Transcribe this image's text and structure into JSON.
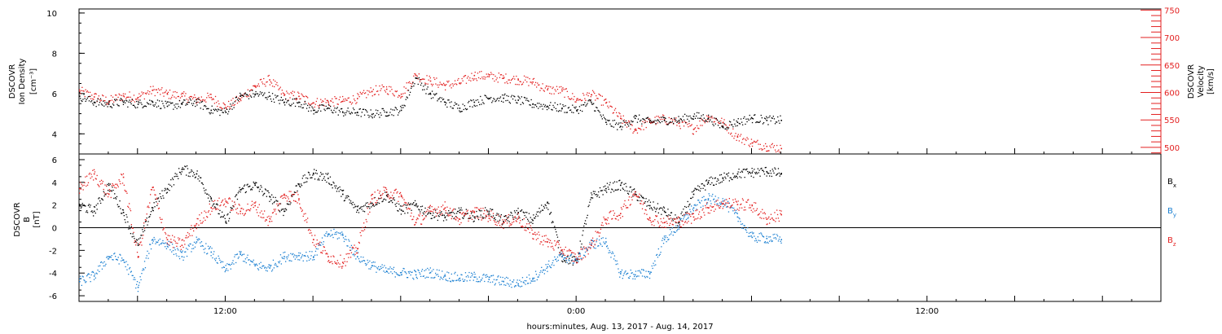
{
  "chart_data": [
    {
      "type": "scatter",
      "panel": "top",
      "title": "",
      "xlabel": "hours:minutes, Aug. 13, 2017 - Aug. 14, 2017",
      "x_tick_labels": [
        "12:00",
        "0:00",
        "12:00"
      ],
      "x_tick_hours": [
        12,
        24,
        36
      ],
      "xlim_hours": [
        7,
        44
      ],
      "grid": false,
      "y_left": {
        "label_lines": [
          "DSCOVR",
          "Ion Density"
        ],
        "unit": "[cm⁻³]",
        "ylim": [
          3,
          10.2
        ],
        "ticks": [
          4,
          6,
          8,
          10
        ],
        "color": "#000000"
      },
      "y_right": {
        "label_lines": [
          "DSCOVR",
          "Velocity"
        ],
        "unit": "[km/s]",
        "ylim": [
          488,
          752
        ],
        "ticks": [
          500,
          550,
          600,
          650,
          700,
          750
        ],
        "color": "#e32020"
      },
      "series": [
        {
          "axis": "left",
          "color": "#000000",
          "x": [
            7.0,
            7.5,
            8.0,
            8.5,
            9.0,
            9.5,
            10.0,
            10.5,
            11.0,
            11.5,
            12.0,
            12.5,
            13.0,
            13.5,
            14.0,
            14.5,
            15.0,
            15.5,
            16.0,
            16.5,
            17.0,
            17.5,
            18.0,
            18.5,
            19.0,
            19.5,
            20.0,
            20.5,
            21.0,
            21.5,
            22.0,
            22.5,
            23.0,
            23.5,
            24.0,
            24.5,
            25.0,
            25.5,
            26.0,
            26.5,
            27.0,
            27.5,
            28.0,
            28.5,
            29.0,
            29.5,
            30.0,
            30.5,
            31.0
          ],
          "y": [
            5.9,
            5.6,
            5.5,
            5.6,
            5.5,
            5.6,
            5.4,
            5.5,
            5.6,
            5.2,
            5.1,
            5.9,
            6.0,
            5.9,
            5.6,
            5.6,
            5.2,
            5.3,
            5.1,
            5.1,
            5.0,
            5.1,
            5.2,
            6.8,
            6.0,
            5.6,
            5.3,
            5.6,
            5.8,
            5.8,
            5.7,
            5.5,
            5.4,
            5.3,
            5.2,
            5.6,
            4.6,
            4.4,
            4.8,
            4.6,
            4.7,
            4.7,
            4.9,
            4.8,
            4.4,
            4.6,
            4.8,
            4.7,
            4.7
          ]
        },
        {
          "axis": "right",
          "color": "#e32020",
          "x": [
            7.0,
            7.5,
            8.0,
            8.5,
            9.0,
            9.5,
            10.0,
            10.5,
            11.0,
            11.5,
            12.0,
            12.5,
            13.0,
            13.5,
            14.0,
            14.5,
            15.0,
            15.5,
            16.0,
            16.5,
            17.0,
            17.5,
            18.0,
            18.5,
            19.0,
            19.5,
            20.0,
            20.5,
            21.0,
            21.5,
            22.0,
            22.5,
            23.0,
            23.5,
            24.0,
            24.5,
            25.0,
            25.5,
            26.0,
            26.5,
            27.0,
            27.5,
            28.0,
            28.5,
            29.0,
            29.5,
            30.0,
            30.5,
            31.0
          ],
          "y": [
            603,
            593,
            585,
            595,
            592,
            605,
            598,
            594,
            588,
            592,
            574,
            589,
            612,
            624,
            596,
            594,
            582,
            584,
            585,
            590,
            603,
            607,
            598,
            632,
            622,
            614,
            618,
            632,
            630,
            627,
            624,
            620,
            606,
            604,
            587,
            597,
            582,
            554,
            532,
            548,
            552,
            545,
            534,
            557,
            546,
            520,
            509,
            503,
            499
          ]
        }
      ]
    },
    {
      "type": "scatter",
      "panel": "bottom",
      "title": "",
      "xlim_hours": [
        7,
        44
      ],
      "grid": false,
      "zero_line": true,
      "legend": "right",
      "y_left": {
        "label_lines": [
          "DSCOVR",
          "B"
        ],
        "unit": "[nT]",
        "ylim": [
          -6.5,
          6.5
        ],
        "ticks": [
          -6,
          -4,
          -2,
          0,
          2,
          4,
          6
        ]
      },
      "legend_entries": [
        {
          "label": "B",
          "sub": "x",
          "color": "#000000"
        },
        {
          "label": "B",
          "sub": "y",
          "color": "#1a7fd1"
        },
        {
          "label": "B",
          "sub": "z",
          "color": "#e32020"
        }
      ],
      "series": [
        {
          "name": "Bx",
          "color": "#000000",
          "x": [
            7.0,
            7.5,
            8.0,
            8.5,
            9.0,
            9.5,
            10.0,
            10.5,
            11.0,
            11.5,
            12.0,
            12.5,
            13.0,
            13.5,
            14.0,
            14.5,
            15.0,
            15.5,
            16.0,
            16.5,
            17.0,
            17.5,
            18.0,
            18.5,
            19.0,
            19.5,
            20.0,
            20.5,
            21.0,
            21.5,
            22.0,
            22.5,
            23.0,
            23.5,
            24.0,
            24.5,
            25.0,
            25.5,
            26.0,
            26.5,
            27.0,
            27.5,
            28.0,
            28.5,
            29.0,
            29.5,
            30.0,
            30.5,
            31.0
          ],
          "y": [
            2.0,
            1.5,
            3.8,
            1.4,
            -1.5,
            1.8,
            3.5,
            5.2,
            4.8,
            2.6,
            0.5,
            3.4,
            3.8,
            2.8,
            1.5,
            3.9,
            4.8,
            4.4,
            3.0,
            1.6,
            2.2,
            2.9,
            1.6,
            2.0,
            1.3,
            1.0,
            1.4,
            1.0,
            1.5,
            0.6,
            1.4,
            0.7,
            2.3,
            -2.5,
            -3.0,
            2.7,
            3.5,
            3.8,
            3.0,
            2.0,
            1.5,
            0.5,
            3.0,
            4.0,
            4.4,
            4.8,
            4.9,
            5.0,
            4.8
          ]
        },
        {
          "name": "By",
          "color": "#1a7fd1",
          "x": [
            7.0,
            7.5,
            8.0,
            8.5,
            9.0,
            9.5,
            10.0,
            10.5,
            11.0,
            11.5,
            12.0,
            12.5,
            13.0,
            13.5,
            14.0,
            14.5,
            15.0,
            15.5,
            16.0,
            16.5,
            17.0,
            17.5,
            18.0,
            18.5,
            19.0,
            19.5,
            20.0,
            20.5,
            21.0,
            21.5,
            22.0,
            22.5,
            23.0,
            23.5,
            24.0,
            24.5,
            25.0,
            25.5,
            26.0,
            26.5,
            27.0,
            27.5,
            28.0,
            28.5,
            29.0,
            29.5,
            30.0,
            30.5,
            31.0
          ],
          "y": [
            -4.7,
            -4.2,
            -2.5,
            -2.8,
            -5.2,
            -1.0,
            -1.4,
            -2.5,
            -1.2,
            -2.1,
            -3.7,
            -2.3,
            -3.3,
            -3.5,
            -2.5,
            -2.4,
            -2.5,
            -0.5,
            -0.6,
            -2.5,
            -3.3,
            -3.8,
            -3.9,
            -4.1,
            -3.9,
            -4.2,
            -4.4,
            -4.3,
            -4.5,
            -4.7,
            -4.9,
            -4.4,
            -3.4,
            -2.5,
            -2.8,
            -1.4,
            -1.2,
            -4.0,
            -4.1,
            -4.0,
            -1.0,
            0.2,
            1.8,
            2.6,
            2.4,
            1.0,
            -0.8,
            -0.9,
            -1.0
          ]
        },
        {
          "name": "Bz",
          "color": "#e32020",
          "x": [
            7.0,
            7.5,
            8.0,
            8.5,
            9.0,
            9.5,
            10.0,
            10.5,
            11.0,
            11.5,
            12.0,
            12.5,
            13.0,
            13.5,
            14.0,
            14.5,
            15.0,
            15.5,
            16.0,
            16.5,
            17.0,
            17.5,
            18.0,
            18.5,
            19.0,
            19.5,
            20.0,
            20.5,
            21.0,
            21.5,
            22.0,
            22.5,
            23.0,
            23.5,
            24.0,
            24.5,
            25.0,
            25.5,
            26.0,
            26.5,
            27.0,
            27.5,
            28.0,
            28.5,
            29.0,
            29.5,
            30.0,
            30.5,
            31.0
          ],
          "y": [
            3.5,
            4.8,
            3.0,
            4.5,
            -2.5,
            3.6,
            -1.0,
            -1.5,
            0.4,
            1.8,
            2.4,
            1.5,
            2.0,
            0.6,
            3.0,
            2.6,
            -1.0,
            -2.5,
            -3.0,
            -1.8,
            2.6,
            3.2,
            2.8,
            0.5,
            1.5,
            1.8,
            0.8,
            1.4,
            1.1,
            0.5,
            0.9,
            -0.5,
            -1.2,
            -1.9,
            -2.7,
            -1.5,
            0.8,
            1.3,
            3.2,
            0.9,
            0.5,
            0.6,
            1.0,
            1.8,
            2.2,
            2.1,
            2.0,
            0.8,
            1.2
          ]
        }
      ]
    }
  ]
}
